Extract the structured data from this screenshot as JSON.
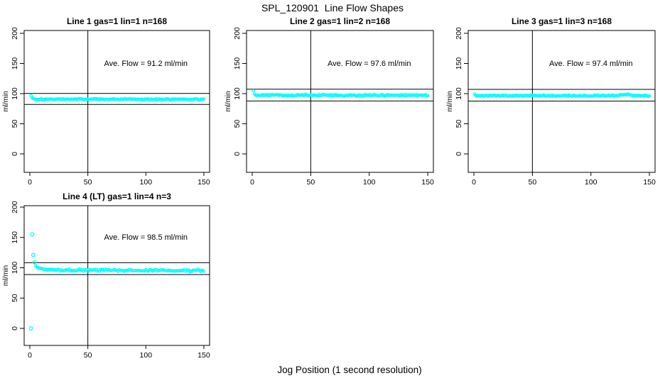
{
  "chart_data": {
    "type": "scatter",
    "suptitle": "SPL_120901  Line Flow Shapes",
    "xlabel": "Jog Position (1 second resolution)",
    "ylabel": "ml/min",
    "x_ticks": [
      0,
      50,
      100,
      150
    ],
    "y_ticks": [
      0,
      50,
      100,
      150,
      200
    ],
    "xlim": [
      -6,
      156
    ],
    "ylim": [
      -30,
      205
    ],
    "grid": false,
    "legend": "none",
    "point_color": "#00ffff",
    "line_color": "#000000",
    "vline_x": 50,
    "annotation_pos": {
      "x": 100,
      "y": 146
    },
    "panels": [
      {
        "id": "line-1",
        "title": "Line 1 gas=1 lin=1 n=168",
        "annotation": "Ave. Flow =  91.2  ml/min",
        "mean_flow_ml_min": 91.2,
        "n": 168,
        "ref_lines": [
          100.3,
          82.1
        ],
        "band": {
          "x_start": 1,
          "x_end": 150,
          "points": 168,
          "base": 90.8,
          "transient_amp": 6.2,
          "transient_tau": 1.0,
          "noise": 1.0,
          "drift": 0,
          "seed": 101
        },
        "outliers": []
      },
      {
        "id": "line-2",
        "title": "Line 2 gas=1 lin=2 n=168",
        "annotation": "Ave. Flow =  97.6  ml/min",
        "mean_flow_ml_min": 97.6,
        "n": 168,
        "ref_lines": [
          107.4,
          87.8
        ],
        "band": {
          "x_start": 1,
          "x_end": 150,
          "points": 168,
          "base": 97.3,
          "transient_amp": 7.7,
          "transient_tau": 0.8,
          "noise": 1.3,
          "drift": 0,
          "seed": 202
        },
        "outliers": []
      },
      {
        "id": "line-3",
        "title": "Line 3 gas=1 lin=3 n=168",
        "annotation": "Ave. Flow =  97.4  ml/min",
        "mean_flow_ml_min": 97.4,
        "n": 168,
        "ref_lines": [
          107.1,
          87.7
        ],
        "band": {
          "x_start": 0.5,
          "x_end": 150,
          "points": 168,
          "base": 96.6,
          "transient_amp": 2.2,
          "transient_tau": 0.7,
          "noise": 1.0,
          "drift": 0,
          "seed": 303,
          "bump": {
            "center": 130,
            "width": 6,
            "amp": 1.6
          }
        },
        "outliers": []
      },
      {
        "id": "line-4",
        "title": "Line 4 (LT) gas=1 lin=4 n=3",
        "annotation": "Ave. Flow =  98.5  ml/min",
        "mean_flow_ml_min": 98.5,
        "n": 3,
        "ref_lines": [
          108.4,
          88.7
        ],
        "band": {
          "x_start": 5,
          "x_end": 150,
          "points": 146,
          "base": 96.3,
          "transient_amp": 7.0,
          "transient_tau": 4.0,
          "noise": 1.7,
          "drift": -0.008,
          "seed": 404
        },
        "outliers": [
          [
            1,
            0
          ],
          [
            2,
            155
          ],
          [
            3,
            121
          ],
          [
            4,
            109
          ]
        ]
      }
    ]
  }
}
